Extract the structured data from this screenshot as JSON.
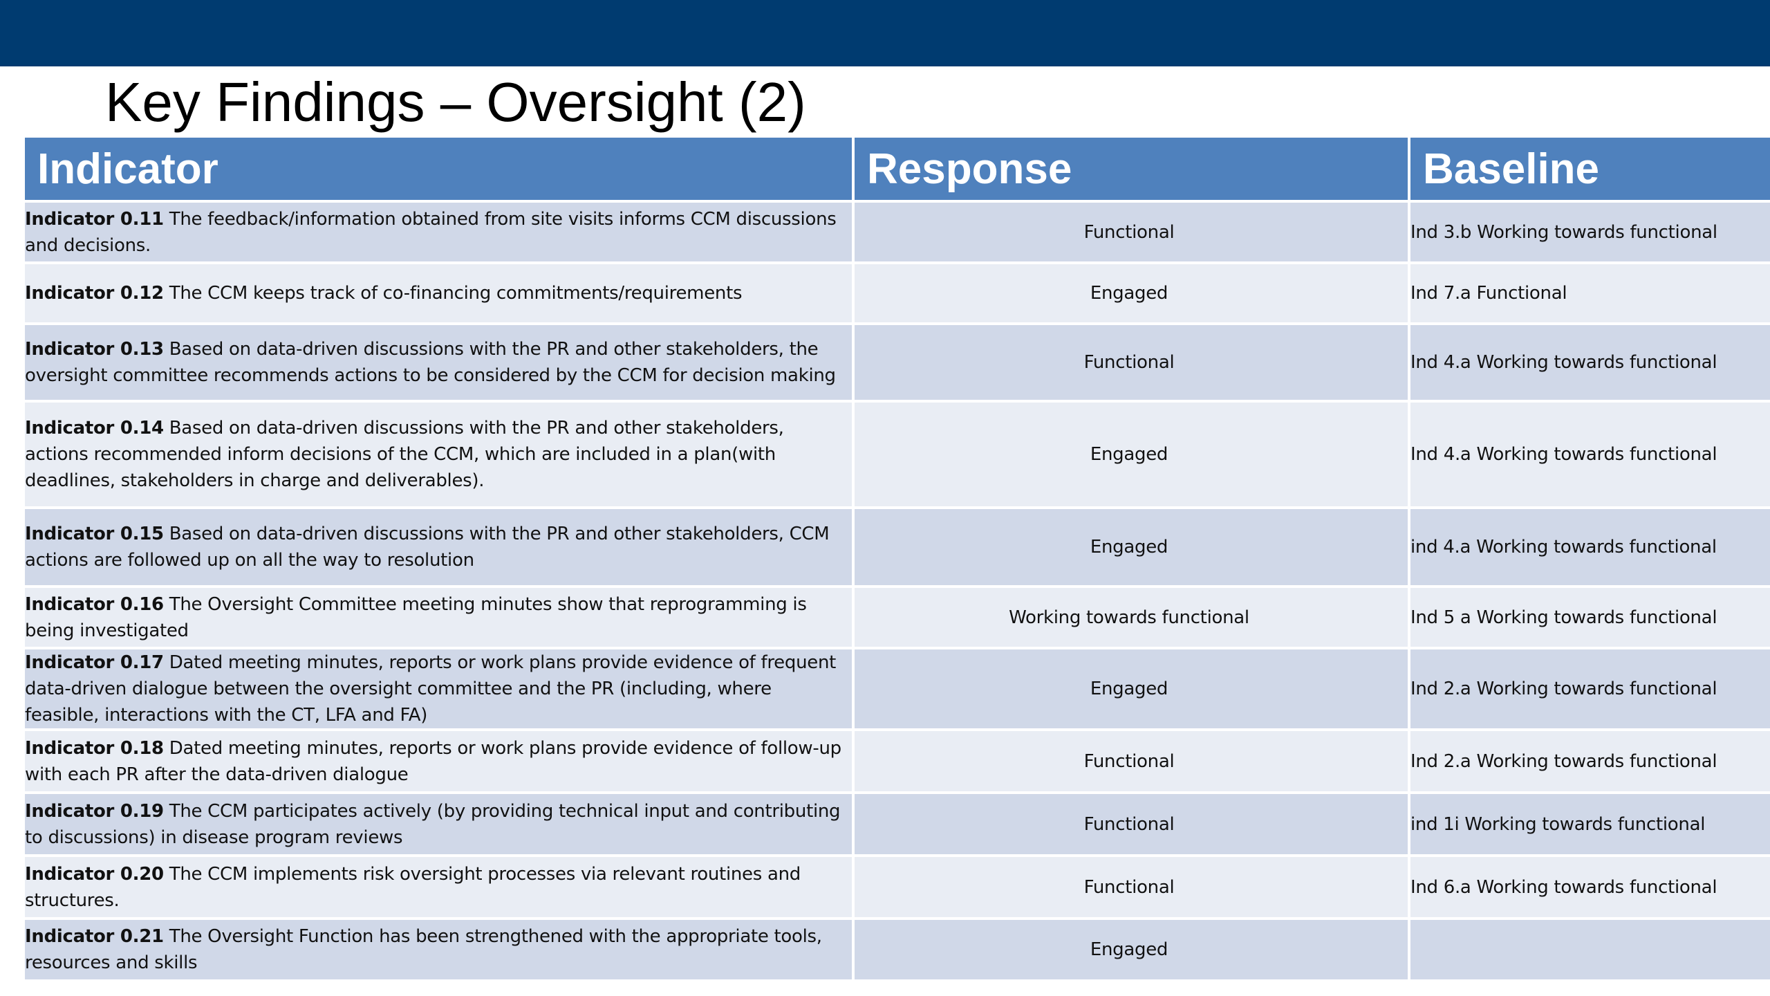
{
  "slide": {
    "title": "Key Findings – Oversight (2)"
  },
  "table": {
    "headers": [
      "Indicator",
      "Response",
      "Baseline"
    ],
    "rows": [
      {
        "label": "Indicator 0.11",
        "text": "  The feedback/information obtained from site visits informs CCM discussions and decisions.",
        "response": "Functional",
        "baseline": "Ind 3.b Working towards functional"
      },
      {
        "label": "Indicator 0.12",
        "text": " The CCM keeps track of co-financing commitments/requirements",
        "response": "Engaged",
        "baseline": "Ind 7.a Functional"
      },
      {
        "label": "Indicator 0.13",
        "text": "  Based on data-driven discussions with the PR and other stakeholders,  the oversight committee recommends actions to be considered by the CCM for decision making",
        "response": "Functional",
        "baseline": "Ind 4.a Working towards functional"
      },
      {
        "label": "Indicator 0.14",
        "text": "  Based on data-driven discussions with the PR and other stakeholders, actions recommended inform decisions of the CCM, which are included in a plan(with deadlines, stakeholders in charge and deliverables).",
        "response": "Engaged",
        "baseline": "Ind 4.a Working towards functional"
      },
      {
        "label": "Indicator 0.15",
        "text": " Based on data-driven discussions with the PR and other stakeholders, CCM actions are followed up on all the way to resolution",
        "response": "Engaged",
        "baseline": "ind 4.a Working towards functional"
      },
      {
        "label": "Indicator 0.16",
        "text": " The Oversight Committee meeting minutes show that reprogramming is being investigated",
        "response": "Working towards functional",
        "baseline": "Ind 5 a Working towards functional"
      },
      {
        "label": "Indicator 0.17",
        "text": " Dated meeting minutes, reports or work plans provide evidence of frequent data-driven dialogue  between the oversight committee and the PR  (including, where feasible, interactions with the CT, LFA and FA)",
        "response": "Engaged",
        "baseline": "Ind 2.a Working towards functional"
      },
      {
        "label": "Indicator 0.18",
        "text": " Dated meeting minutes, reports or work plans provide evidence of follow-up with each PR after the data-driven dialogue",
        "response": "Functional",
        "baseline": "Ind 2.a Working towards functional"
      },
      {
        "label": "Indicator 0.19",
        "text": " The CCM participates actively (by providing technical input and contributing to discussions) in disease program reviews",
        "response": "Functional",
        "baseline": "ind 1i Working towards functional"
      },
      {
        "label": "Indicator 0.20",
        "text": " The CCM implements risk oversight processes via relevant routines and structures.",
        "response": "Functional",
        "baseline": "Ind 6.a Working towards functional"
      },
      {
        "label": "Indicator 0.21",
        "text": " The Oversight Function has been strengthened with the appropriate tools, resources and skills",
        "response": "Engaged",
        "baseline": ""
      }
    ]
  },
  "colors": {
    "top_bar": "#003b70",
    "header_fill": "#4f81bd",
    "row_odd": "#d0d8e8",
    "row_even": "#e9edf4"
  }
}
